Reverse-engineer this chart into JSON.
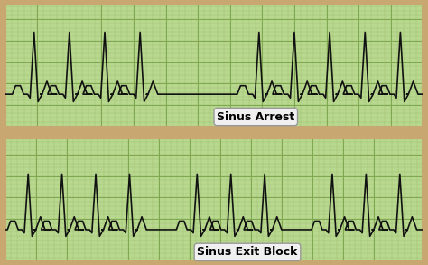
{
  "panel1_label": "Sinus Arrest",
  "panel2_label": "Sinus Exit Block",
  "bg_color": "#b8d890",
  "grid_minor_color": "#a0c070",
  "grid_major_color": "#80a850",
  "border_color": "#c8a870",
  "ekg_color": "#111111",
  "label_fontsize": 9,
  "line_width": 1.2,
  "panel_border": "#c8a870",
  "label_bg": "#f0f0f0",
  "label_edge": "#999999"
}
